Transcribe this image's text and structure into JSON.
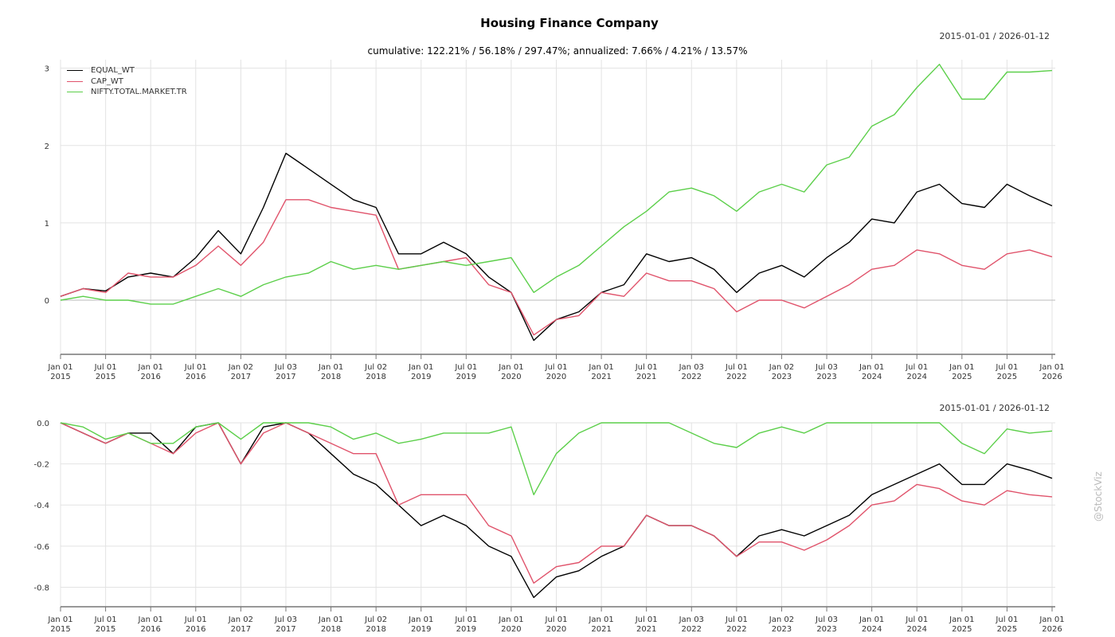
{
  "chart_data": [
    {
      "type": "line",
      "title": "Housing Finance Company",
      "subtitle": "cumulative: 122.21% / 56.18% / 297.47%; annualized: 7.66% / 4.21% / 13.57%",
      "date_range": "2015-01-01 / 2026-01-12",
      "ylim": [
        -0.7,
        3.11
      ],
      "yticks": [
        "3",
        "2",
        "1",
        "0"
      ],
      "ytick_values": [
        3,
        2,
        1,
        0
      ],
      "xlabel": "",
      "ylabel": "",
      "grid": true,
      "legend_placement": "top-left",
      "x": [
        "2015-01",
        "2015-04",
        "2015-07",
        "2015-10",
        "2016-01",
        "2016-04",
        "2016-07",
        "2016-10",
        "2017-01",
        "2017-04",
        "2017-07",
        "2017-10",
        "2018-01",
        "2018-04",
        "2018-07",
        "2018-10",
        "2019-01",
        "2019-04",
        "2019-07",
        "2019-10",
        "2020-01",
        "2020-04",
        "2020-07",
        "2020-10",
        "2021-01",
        "2021-04",
        "2021-07",
        "2021-10",
        "2022-01",
        "2022-04",
        "2022-07",
        "2022-10",
        "2023-01",
        "2023-04",
        "2023-07",
        "2023-10",
        "2024-01",
        "2024-04",
        "2024-07",
        "2024-10",
        "2025-01",
        "2025-04",
        "2025-07",
        "2025-10",
        "2026-01"
      ],
      "series": [
        {
          "name": "EQUAL_WT",
          "color": "#000000",
          "values": [
            0.05,
            0.15,
            0.12,
            0.3,
            0.35,
            0.3,
            0.55,
            0.9,
            0.6,
            1.2,
            1.9,
            1.7,
            1.5,
            1.3,
            1.2,
            0.6,
            0.6,
            0.75,
            0.6,
            0.3,
            0.1,
            -0.52,
            -0.25,
            -0.15,
            0.1,
            0.2,
            0.6,
            0.5,
            0.55,
            0.4,
            0.1,
            0.35,
            0.45,
            0.3,
            0.55,
            0.75,
            1.05,
            1.0,
            1.4,
            1.5,
            1.25,
            1.2,
            1.5,
            1.35,
            1.22
          ]
        },
        {
          "name": "CAP_WT",
          "color": "#e0536b",
          "values": [
            0.05,
            0.15,
            0.1,
            0.35,
            0.3,
            0.3,
            0.45,
            0.7,
            0.45,
            0.75,
            1.3,
            1.3,
            1.2,
            1.15,
            1.1,
            0.4,
            0.45,
            0.5,
            0.55,
            0.2,
            0.1,
            -0.45,
            -0.25,
            -0.2,
            0.1,
            0.05,
            0.35,
            0.25,
            0.25,
            0.15,
            -0.15,
            0.0,
            0.0,
            -0.1,
            0.05,
            0.2,
            0.4,
            0.45,
            0.65,
            0.6,
            0.45,
            0.4,
            0.6,
            0.65,
            0.56
          ]
        },
        {
          "name": "NIFTY.TOTAL.MARKET.TR",
          "color": "#5ccf4a",
          "values": [
            0,
            0.05,
            0,
            0,
            -0.05,
            -0.05,
            0.05,
            0.15,
            0.05,
            0.2,
            0.3,
            0.35,
            0.5,
            0.4,
            0.45,
            0.4,
            0.45,
            0.5,
            0.45,
            0.5,
            0.55,
            0.1,
            0.3,
            0.45,
            0.7,
            0.95,
            1.15,
            1.4,
            1.45,
            1.35,
            1.15,
            1.4,
            1.5,
            1.4,
            1.75,
            1.85,
            2.25,
            2.4,
            2.75,
            3.05,
            2.6,
            2.6,
            2.95,
            2.95,
            2.97
          ]
        }
      ]
    },
    {
      "type": "line",
      "date_range": "2015-01-01 / 2026-01-12",
      "ylim": [
        -0.895,
        0
      ],
      "yticks": [
        "0.0",
        "-0.2",
        "-0.4",
        "-0.6",
        "-0.8"
      ],
      "ytick_values": [
        0,
        -0.2,
        -0.4,
        -0.6,
        -0.8
      ],
      "grid": true,
      "series": [
        {
          "name": "EQUAL_WT",
          "color": "#000000",
          "values": [
            0,
            -0.05,
            -0.1,
            -0.05,
            -0.05,
            -0.15,
            -0.02,
            0,
            -0.2,
            -0.02,
            0,
            -0.05,
            -0.15,
            -0.25,
            -0.3,
            -0.4,
            -0.5,
            -0.45,
            -0.5,
            -0.6,
            -0.65,
            -0.85,
            -0.75,
            -0.72,
            -0.65,
            -0.6,
            -0.45,
            -0.5,
            -0.5,
            -0.55,
            -0.65,
            -0.55,
            -0.52,
            -0.55,
            -0.5,
            -0.45,
            -0.35,
            -0.3,
            -0.25,
            -0.2,
            -0.3,
            -0.3,
            -0.2,
            -0.23,
            -0.27
          ]
        },
        {
          "name": "CAP_WT",
          "color": "#e0536b",
          "values": [
            0,
            -0.05,
            -0.1,
            -0.05,
            -0.1,
            -0.15,
            -0.05,
            0,
            -0.2,
            -0.05,
            0,
            -0.05,
            -0.1,
            -0.15,
            -0.15,
            -0.4,
            -0.35,
            -0.35,
            -0.35,
            -0.5,
            -0.55,
            -0.78,
            -0.7,
            -0.68,
            -0.6,
            -0.6,
            -0.45,
            -0.5,
            -0.5,
            -0.55,
            -0.65,
            -0.58,
            -0.58,
            -0.62,
            -0.57,
            -0.5,
            -0.4,
            -0.38,
            -0.3,
            -0.32,
            -0.38,
            -0.4,
            -0.33,
            -0.35,
            -0.36
          ]
        },
        {
          "name": "NIFTY.TOTAL.MARKET.TR",
          "color": "#5ccf4a",
          "values": [
            0,
            -0.02,
            -0.08,
            -0.05,
            -0.1,
            -0.1,
            -0.02,
            0,
            -0.08,
            0,
            0,
            0,
            -0.02,
            -0.08,
            -0.05,
            -0.1,
            -0.08,
            -0.05,
            -0.05,
            -0.05,
            -0.02,
            -0.35,
            -0.15,
            -0.05,
            0,
            0,
            0,
            0,
            -0.05,
            -0.1,
            -0.12,
            -0.05,
            -0.02,
            -0.05,
            0,
            0,
            0,
            0,
            0,
            0,
            -0.1,
            -0.15,
            -0.03,
            -0.05,
            -0.04
          ]
        }
      ]
    }
  ],
  "xticks": [
    [
      "Jan 01",
      "2015"
    ],
    [
      "Jul 01",
      "2015"
    ],
    [
      "Jan 01",
      "2016"
    ],
    [
      "Jul 01",
      "2016"
    ],
    [
      "Jan 02",
      "2017"
    ],
    [
      "Jul 03",
      "2017"
    ],
    [
      "Jan 01",
      "2018"
    ],
    [
      "Jul 02",
      "2018"
    ],
    [
      "Jan 01",
      "2019"
    ],
    [
      "Jul 01",
      "2019"
    ],
    [
      "Jan 01",
      "2020"
    ],
    [
      "Jul 01",
      "2020"
    ],
    [
      "Jan 01",
      "2021"
    ],
    [
      "Jul 01",
      "2021"
    ],
    [
      "Jan 03",
      "2022"
    ],
    [
      "Jul 01",
      "2022"
    ],
    [
      "Jan 02",
      "2023"
    ],
    [
      "Jul 03",
      "2023"
    ],
    [
      "Jan 01",
      "2024"
    ],
    [
      "Jul 01",
      "2024"
    ],
    [
      "Jan 01",
      "2025"
    ],
    [
      "Jul 01",
      "2025"
    ],
    [
      "Jan 01",
      "2026"
    ]
  ],
  "watermark": "@StockViz"
}
